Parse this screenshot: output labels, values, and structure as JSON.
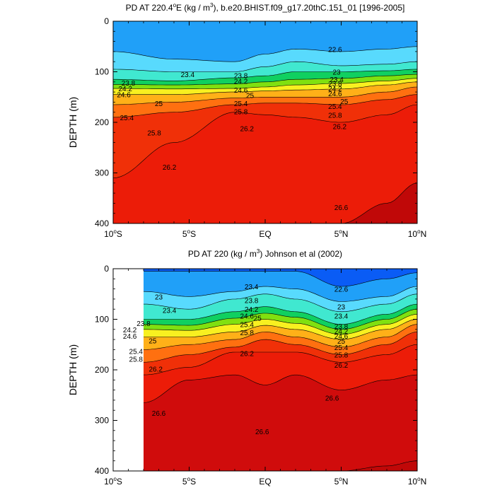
{
  "chart_data": [
    {
      "type": "heatmap",
      "title": "PD AT 220.4°E (kg / m3), b.e20.BHIST.f09_g17.20thC.151_01 [1996-2005]",
      "title_parts": {
        "a": "PD AT 220.4",
        "deg": "o",
        "b": "E (kg / m",
        "sup": "3",
        "c": "), b.e20.BHIST.f09_g17.20thC.151_01 [1996-2005]"
      },
      "ylabel": "DEPTH (m)",
      "xlim": [
        -10,
        10
      ],
      "ylim": [
        400,
        0
      ],
      "y_reversed": true,
      "yticks": [
        "0",
        "100",
        "200",
        "300",
        "400"
      ],
      "xticks": [
        {
          "value": -10,
          "num": "10",
          "deg": "o",
          "hemi": "S"
        },
        {
          "value": -5,
          "num": "5",
          "deg": "o",
          "hemi": "S"
        },
        {
          "value": 0,
          "num": "EQ",
          "deg": "",
          "hemi": ""
        },
        {
          "value": 5,
          "num": "5",
          "deg": "o",
          "hemi": "N"
        },
        {
          "value": 10,
          "num": "10",
          "deg": "o",
          "hemi": "N"
        }
      ],
      "data_xrange": [
        -10,
        10
      ],
      "colorscale": [
        {
          "level": 21.0,
          "color": "#a300d6"
        },
        {
          "level": 21.4,
          "color": "#7a16e0"
        },
        {
          "level": 21.8,
          "color": "#4a24e8"
        },
        {
          "level": 22.2,
          "color": "#1e2af0"
        },
        {
          "level": 22.4,
          "color": "#0a5cf5"
        },
        {
          "level": 22.6,
          "color": "#1080f5"
        },
        {
          "level": 22.8,
          "color": "#20a0f8"
        },
        {
          "level": 23.0,
          "color": "#38c0fb"
        },
        {
          "level": 23.2,
          "color": "#58dafd"
        },
        {
          "level": 23.4,
          "color": "#72f0fb"
        },
        {
          "level": 23.6,
          "color": "#40e8d0"
        },
        {
          "level": 23.8,
          "color": "#18dca4"
        },
        {
          "level": 24.0,
          "color": "#10d060"
        },
        {
          "level": 24.2,
          "color": "#38d818"
        },
        {
          "level": 24.4,
          "color": "#80e010"
        },
        {
          "level": 24.6,
          "color": "#c8ec10"
        },
        {
          "level": 24.8,
          "color": "#f8f020"
        },
        {
          "level": 25.0,
          "color": "#ffd020"
        },
        {
          "level": 25.2,
          "color": "#ffb018"
        },
        {
          "level": 25.4,
          "color": "#ff9014"
        },
        {
          "level": 25.6,
          "color": "#ff7010"
        },
        {
          "level": 25.8,
          "color": "#f8500c"
        },
        {
          "level": 26.0,
          "color": "#f03008"
        },
        {
          "level": 26.2,
          "color": "#ec1c08"
        },
        {
          "level": 26.6,
          "color": "#d00c0c"
        },
        {
          "level": 27.0,
          "color": "#c00808"
        }
      ],
      "isopycnals": [
        {
          "level": 23.0,
          "x": [
            -10,
            -6,
            -2,
            0,
            2,
            5,
            8,
            10
          ],
          "y": [
            60,
            75,
            80,
            65,
            55,
            60,
            55,
            50
          ]
        },
        {
          "level": 23.4,
          "x": [
            -10,
            -6,
            -2,
            0,
            2,
            5,
            8,
            10
          ],
          "y": [
            95,
            100,
            100,
            90,
            80,
            88,
            85,
            80
          ]
        },
        {
          "level": 23.8,
          "x": [
            -10,
            -6,
            -2,
            0,
            2,
            5,
            8,
            10
          ],
          "y": [
            115,
            118,
            112,
            108,
            100,
            100,
            98,
            95
          ]
        },
        {
          "level": 24.2,
          "x": [
            -10,
            -6,
            -2,
            0,
            2,
            5,
            8,
            10
          ],
          "y": [
            125,
            126,
            124,
            120,
            115,
            113,
            108,
            105
          ]
        },
        {
          "level": 24.6,
          "x": [
            -10,
            -6,
            -2,
            0,
            2,
            5,
            8,
            10
          ],
          "y": [
            133,
            134,
            133,
            130,
            126,
            123,
            118,
            113
          ]
        },
        {
          "level": 25.0,
          "x": [
            -10,
            -6,
            -2,
            0,
            2,
            5,
            8,
            10
          ],
          "y": [
            145,
            145,
            140,
            138,
            136,
            134,
            126,
            120
          ]
        },
        {
          "level": 25.4,
          "x": [
            -10,
            -6,
            -2,
            0,
            2,
            5,
            8,
            10
          ],
          "y": [
            165,
            160,
            152,
            150,
            150,
            150,
            140,
            130
          ]
        },
        {
          "level": 25.8,
          "x": [
            -10,
            -6,
            -2,
            0,
            2,
            5,
            8,
            10
          ],
          "y": [
            190,
            180,
            165,
            162,
            162,
            165,
            155,
            145
          ]
        },
        {
          "level": 26.2,
          "x": [
            -10,
            -6,
            -2,
            0,
            2,
            5,
            8,
            10
          ],
          "y": [
            310,
            240,
            180,
            185,
            190,
            200,
            185,
            165
          ]
        },
        {
          "level": 26.6,
          "x": [
            -10,
            -6,
            -2,
            0,
            2,
            5,
            8,
            10
          ],
          "y": [
            400,
            400,
            400,
            400,
            400,
            400,
            360,
            320
          ]
        }
      ],
      "contour_labels": [
        {
          "text": "22.6",
          "x": 4.6,
          "y": 55
        },
        {
          "text": "23.4",
          "x": -5.1,
          "y": 105
        },
        {
          "text": "23",
          "x": 4.7,
          "y": 100
        },
        {
          "text": "23.8",
          "x": -9.0,
          "y": 122
        },
        {
          "text": "23.8",
          "x": -1.6,
          "y": 107
        },
        {
          "text": "23.4",
          "x": 4.7,
          "y": 115
        },
        {
          "text": "24.2",
          "x": -9.2,
          "y": 133
        },
        {
          "text": "24.2",
          "x": -1.6,
          "y": 118
        },
        {
          "text": "23.8",
          "x": 4.6,
          "y": 123
        },
        {
          "text": "24.6",
          "x": -9.3,
          "y": 145
        },
        {
          "text": "24.6",
          "x": -1.6,
          "y": 136
        },
        {
          "text": "24.2",
          "x": 4.6,
          "y": 133
        },
        {
          "text": "25",
          "x": -1.0,
          "y": 146
        },
        {
          "text": "24.6",
          "x": 4.6,
          "y": 143
        },
        {
          "text": "25",
          "x": -7.0,
          "y": 162
        },
        {
          "text": "25",
          "x": 5.2,
          "y": 158
        },
        {
          "text": "25.4",
          "x": -1.6,
          "y": 162
        },
        {
          "text": "25.4",
          "x": 4.6,
          "y": 168
        },
        {
          "text": "25.8",
          "x": -1.6,
          "y": 178
        },
        {
          "text": "25.8",
          "x": 4.6,
          "y": 185
        },
        {
          "text": "25.4",
          "x": -9.1,
          "y": 190
        },
        {
          "text": "26.2",
          "x": -1.2,
          "y": 212
        },
        {
          "text": "26.2",
          "x": 4.9,
          "y": 208
        },
        {
          "text": "25.8",
          "x": -7.3,
          "y": 220
        },
        {
          "text": "26.2",
          "x": -6.3,
          "y": 288
        },
        {
          "text": "26.6",
          "x": 5.0,
          "y": 368
        }
      ]
    },
    {
      "type": "heatmap",
      "title": "PD AT 220 (kg / m3) Johnson et al (2002)",
      "title_parts": {
        "a": "PD AT 220 (kg / m",
        "sup": "3",
        "c": ") Johnson et al (2002)"
      },
      "ylabel": "DEPTH (m)",
      "xlim": [
        -10,
        10
      ],
      "ylim": [
        400,
        0
      ],
      "y_reversed": true,
      "yticks": [
        "0",
        "100",
        "200",
        "300",
        "400"
      ],
      "xticks": [
        {
          "value": -10,
          "num": "10",
          "deg": "o",
          "hemi": "S"
        },
        {
          "value": -5,
          "num": "5",
          "deg": "o",
          "hemi": "S"
        },
        {
          "value": 0,
          "num": "EQ",
          "deg": "",
          "hemi": ""
        },
        {
          "value": 5,
          "num": "5",
          "deg": "o",
          "hemi": "N"
        },
        {
          "value": 10,
          "num": "10",
          "deg": "o",
          "hemi": "N"
        }
      ],
      "data_xrange": [
        -8,
        10
      ],
      "isopycnals": [
        {
          "level": 22.6,
          "x": [
            -8,
            -5,
            -2,
            0,
            2,
            5,
            8,
            10
          ],
          "y": [
            5,
            5,
            5,
            5,
            5,
            35,
            20,
            8
          ]
        },
        {
          "level": 23.0,
          "x": [
            -8,
            -5,
            -2,
            0,
            2,
            5,
            8,
            10
          ],
          "y": [
            45,
            55,
            45,
            35,
            40,
            65,
            55,
            35
          ]
        },
        {
          "level": 23.4,
          "x": [
            -8,
            -5,
            -2,
            0,
            2,
            5,
            8,
            10
          ],
          "y": [
            70,
            80,
            60,
            50,
            60,
            85,
            70,
            50
          ]
        },
        {
          "level": 23.8,
          "x": [
            -8,
            -5,
            -2,
            0,
            2,
            5,
            8,
            10
          ],
          "y": [
            100,
            100,
            85,
            75,
            85,
            110,
            90,
            70
          ]
        },
        {
          "level": 24.2,
          "x": [
            -8,
            -5,
            -2,
            0,
            2,
            5,
            8,
            10
          ],
          "y": [
            110,
            112,
            98,
            88,
            96,
            120,
            100,
            80
          ]
        },
        {
          "level": 24.6,
          "x": [
            -8,
            -5,
            -2,
            0,
            2,
            5,
            8,
            10
          ],
          "y": [
            120,
            122,
            110,
            100,
            108,
            130,
            110,
            90
          ]
        },
        {
          "level": 25.0,
          "x": [
            -8,
            -5,
            -2,
            0,
            2,
            5,
            8,
            10
          ],
          "y": [
            135,
            135,
            125,
            112,
            120,
            140,
            120,
            100
          ]
        },
        {
          "level": 25.4,
          "x": [
            -8,
            -5,
            -2,
            0,
            2,
            5,
            8,
            10
          ],
          "y": [
            160,
            150,
            140,
            125,
            135,
            155,
            135,
            110
          ]
        },
        {
          "level": 25.8,
          "x": [
            -8,
            -5,
            -2,
            0,
            2,
            5,
            8,
            10
          ],
          "y": [
            185,
            170,
            155,
            140,
            150,
            170,
            150,
            125
          ]
        },
        {
          "level": 26.2,
          "x": [
            -8,
            -5,
            -2,
            0,
            2,
            5,
            8,
            10
          ],
          "y": [
            210,
            195,
            165,
            165,
            165,
            185,
            170,
            150
          ]
        },
        {
          "level": 26.6,
          "x": [
            -8,
            -5,
            -2,
            0,
            2,
            5,
            8,
            10
          ],
          "y": [
            265,
            220,
            210,
            230,
            210,
            240,
            220,
            210
          ]
        },
        {
          "level": 27.0,
          "x": [
            -8,
            -5,
            -2,
            0,
            2,
            5,
            8,
            10
          ],
          "y": [
            400,
            400,
            400,
            400,
            400,
            400,
            390,
            380
          ]
        }
      ],
      "contour_labels": [
        {
          "text": "23",
          "x": -7.0,
          "y": 55
        },
        {
          "text": "23.4",
          "x": -0.9,
          "y": 35
        },
        {
          "text": "22.6",
          "x": 5.0,
          "y": 40
        },
        {
          "text": "23.4",
          "x": -6.3,
          "y": 82
        },
        {
          "text": "23.8",
          "x": -0.9,
          "y": 62
        },
        {
          "text": "23",
          "x": 5.0,
          "y": 75
        },
        {
          "text": "23.8",
          "x": -8.0,
          "y": 108
        },
        {
          "text": "24.2",
          "x": -0.9,
          "y": 80
        },
        {
          "text": "23.4",
          "x": 5.0,
          "y": 93
        },
        {
          "text": "24.2",
          "x": -8.9,
          "y": 120
        },
        {
          "text": "24.6",
          "x": -1.2,
          "y": 93
        },
        {
          "text": "24.6",
          "x": -8.9,
          "y": 133
        },
        {
          "text": "25",
          "x": -0.5,
          "y": 97
        },
        {
          "text": "23.8",
          "x": 5.0,
          "y": 113
        },
        {
          "text": "25",
          "x": -7.4,
          "y": 142
        },
        {
          "text": "25.4",
          "x": -1.2,
          "y": 110
        },
        {
          "text": "24.2",
          "x": 5.0,
          "y": 123
        },
        {
          "text": "25.8",
          "x": -1.2,
          "y": 126
        },
        {
          "text": "24.6",
          "x": 5.0,
          "y": 133
        },
        {
          "text": "25.4",
          "x": -8.5,
          "y": 163
        },
        {
          "text": "25",
          "x": 5.0,
          "y": 143
        },
        {
          "text": "25.4",
          "x": 5.0,
          "y": 155
        },
        {
          "text": "25.8",
          "x": -8.5,
          "y": 178
        },
        {
          "text": "25.8",
          "x": 5.0,
          "y": 170
        },
        {
          "text": "26.2",
          "x": -1.2,
          "y": 167
        },
        {
          "text": "26.2",
          "x": 5.0,
          "y": 190
        },
        {
          "text": "26.2",
          "x": -7.2,
          "y": 198
        },
        {
          "text": "26.6",
          "x": 4.4,
          "y": 255
        },
        {
          "text": "26.6",
          "x": -7.0,
          "y": 285
        },
        {
          "text": "26.6",
          "x": -0.2,
          "y": 322
        }
      ]
    }
  ]
}
